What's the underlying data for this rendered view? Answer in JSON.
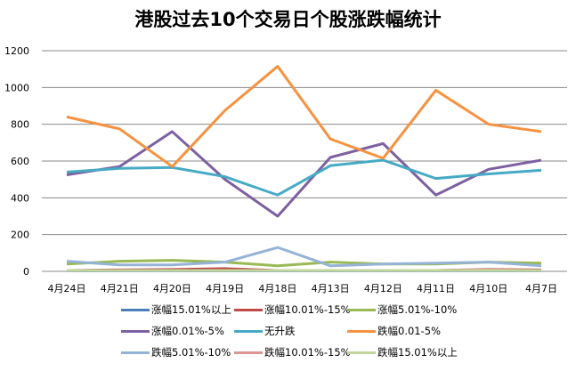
{
  "chart_data": {
    "type": "line",
    "title": "港股过去10个交易日个股涨跌幅统计",
    "categories": [
      "4月24日",
      "4月21日",
      "4月20日",
      "4月19日",
      "4月18日",
      "4月13日",
      "4月12日",
      "4月11日",
      "4月10日",
      "4月7日"
    ],
    "ylim": [
      0,
      1200
    ],
    "yticks": [
      "0",
      "200",
      "400",
      "600",
      "800",
      "1000",
      "1200"
    ],
    "grid": true,
    "legend_position": "bottom",
    "series": [
      {
        "name": "涨幅15.01%以上",
        "color": "#4a7ebb",
        "values": [
          3,
          3,
          3,
          3,
          3,
          3,
          3,
          3,
          3,
          3
        ]
      },
      {
        "name": "涨幅10.01%-15%",
        "color": "#be4b48",
        "values": [
          5,
          8,
          10,
          15,
          5,
          5,
          5,
          5,
          10,
          8
        ]
      },
      {
        "name": "涨幅5.01%-10%",
        "color": "#98b954",
        "values": [
          40,
          55,
          60,
          50,
          30,
          50,
          40,
          40,
          50,
          45
        ]
      },
      {
        "name": "涨幅0.01%-5%",
        "color": "#7d60a0",
        "values": [
          525,
          570,
          760,
          500,
          300,
          620,
          695,
          415,
          555,
          605
        ]
      },
      {
        "name": "无升跌",
        "color": "#46aac5",
        "values": [
          540,
          560,
          565,
          515,
          415,
          575,
          605,
          505,
          530,
          550
        ]
      },
      {
        "name": "跌幅0.01-5%",
        "color": "#f69240",
        "values": [
          840,
          775,
          570,
          875,
          1115,
          720,
          615,
          985,
          800,
          760
        ]
      },
      {
        "name": "跌幅5.01%-10%",
        "color": "#95b3d7",
        "values": [
          55,
          35,
          35,
          50,
          130,
          30,
          40,
          45,
          50,
          30
        ]
      },
      {
        "name": "跌幅10.01%-15%",
        "color": "#d99694",
        "values": [
          5,
          5,
          5,
          5,
          5,
          5,
          5,
          5,
          8,
          5
        ]
      },
      {
        "name": "跌幅15.01%以上",
        "color": "#c3d69b",
        "values": [
          5,
          5,
          5,
          5,
          5,
          5,
          5,
          5,
          5,
          5
        ]
      }
    ]
  }
}
